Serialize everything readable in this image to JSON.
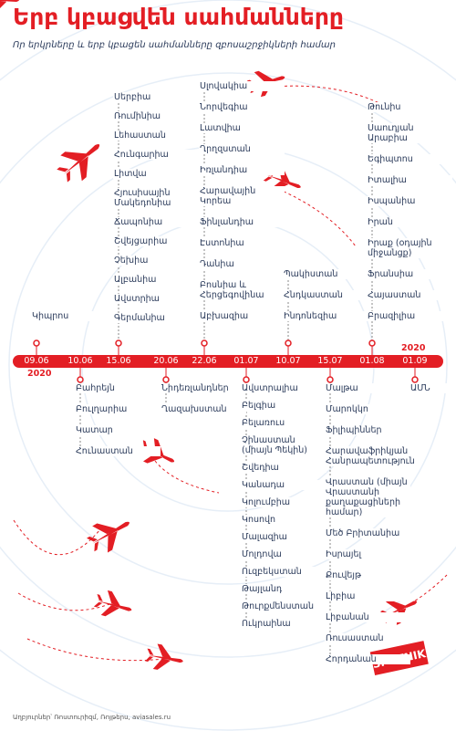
{
  "header": {
    "title": "Երբ կբացվեն սահմանները",
    "subtitle": "Որ երկրները և երբ կբացեն սահմանները զբոսաշրջիկների համար"
  },
  "timeline": {
    "dates": [
      "09.06",
      "10.06",
      "15.06",
      "20.06",
      "22.06",
      "01.07",
      "10.07",
      "15.07",
      "01.08",
      "01.09"
    ],
    "year_start": "2020",
    "year_end": "2020"
  },
  "groups": [
    {
      "date": 0,
      "side": "above",
      "countries": [
        "Կիպրոս"
      ]
    },
    {
      "date": 1,
      "side": "below",
      "countries": [
        "Բահրեյն",
        "Բուլղարիա",
        "Կատար",
        "Հունաստան"
      ]
    },
    {
      "date": 2,
      "side": "above",
      "countries": [
        "Սերբիա",
        "Ռումինիա",
        "Լեհաստան",
        "Հունգարիա",
        "Լիտվա",
        "Հյուսիսային Մակեդոնիա",
        "Ճապոնիա",
        "Շվեյցարիա",
        "Չեխիա",
        "Ալբանիա",
        "Ավստրիա",
        "Գերմանիա"
      ]
    },
    {
      "date": 3,
      "side": "below",
      "countries": [
        "Նիդեռլանդներ",
        "Ղազախստան"
      ]
    },
    {
      "date": 4,
      "side": "above",
      "countries": [
        "Սլովակիա",
        "Նորվեգիա",
        "Լատվիա",
        "Ղրղզստան",
        "Իռլանդիա",
        "Հարավային Կորեա",
        "Ֆինլանդիա",
        "Էստոնիա",
        "Դանիա",
        "Բոսնիա և Հերցեգովինա",
        "Աբխազիա"
      ]
    },
    {
      "date": 5,
      "side": "below",
      "countries": [
        "Ավստրալիա",
        "Բելգիա",
        "Բելառուս",
        "Չինաստան (միայն Պեկին)",
        "Շվեդիա",
        "Կանադա",
        "Կոլումբիա",
        "Կոսովո",
        "Մալազիա",
        "Մոլդովա",
        "Ուզբեկստան",
        "Թայլանդ",
        "Թուրքմենստան",
        "Ուկրաինա"
      ]
    },
    {
      "date": 6,
      "side": "above",
      "countries": [
        "Պակիստան",
        "Հնդկաստան",
        "Ինդոնեզիա"
      ]
    },
    {
      "date": 7,
      "side": "below",
      "countries": [
        "Մալթա",
        "Մարոկկո",
        "Ֆիլիպիններ",
        "Հարավաֆրիկյան Հանրապետություն",
        "Վրաստան (միայն Վրաստանի քաղաքացիների համար)",
        "Մեծ Բրիտանիա",
        "Իսրայել",
        "Քուվեյթ",
        "Լիբիա",
        "Լիբանան",
        "Ռուսաստան",
        "Հորդանան"
      ]
    },
    {
      "date": 8,
      "side": "above",
      "countries": [
        "Թունիս",
        "Սաուդյան Արաբիա",
        "Եգիպտոս",
        "Իտալիա",
        "Իսպանիա",
        "Իրան",
        "Իրաք (օդային միջանցք)",
        "Ֆրանսիա",
        "Հայաստան",
        "Բրազիլիա"
      ]
    },
    {
      "date": 9,
      "side": "below",
      "countries": [
        "ԱՄՆ"
      ]
    }
  ],
  "footer": {
    "source": "Աղբյուրներ՝ Ռոստուրիզմ, Ռոյթերս, aviasales.ru",
    "logo": "SPUTNIK"
  }
}
